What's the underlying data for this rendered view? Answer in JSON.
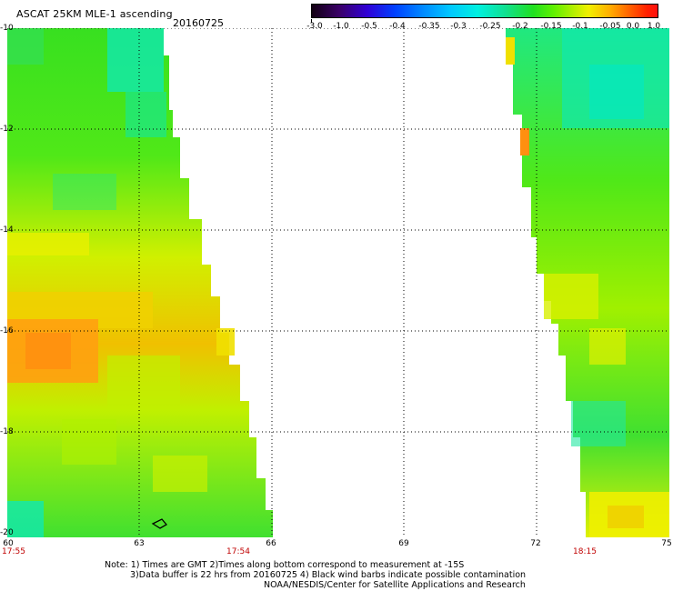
{
  "header": {
    "title": "ASCAT 25KM MLE-1 ascending",
    "date": "20160725"
  },
  "colorbar": {
    "labels": [
      "-3.0",
      "-1.0",
      "-0.5",
      "-0.4",
      "-0.35",
      "-0.3",
      "-0.25",
      "-0.2",
      "-0.15",
      "-0.1",
      "-0.05",
      "0.0",
      "1.0"
    ]
  },
  "map": {
    "lat_labels": [
      "-10",
      "-12",
      "-14",
      "-16",
      "-18",
      "-20"
    ],
    "lon_labels": [
      "60",
      "63",
      "66",
      "69",
      "72",
      "75"
    ],
    "time_labels": [
      "17:55",
      "17:54",
      "18:15"
    ],
    "colors": {
      "green": "#40e010",
      "lime": "#90f010",
      "yellow": "#e8f000",
      "orange": "#ffa020",
      "cyan": "#00f0c0",
      "grid": "#000000"
    }
  },
  "notes": {
    "line1": "Note: 1) Times are GMT 2)Times along bottom correspond to measurement at -15S",
    "line2": "3)Data buffer is 22 hrs from 20160725 4) Black wind barbs indicate possible contamination",
    "line3": "NOAA/NESDIS/Center for Satellite Applications and Research"
  }
}
